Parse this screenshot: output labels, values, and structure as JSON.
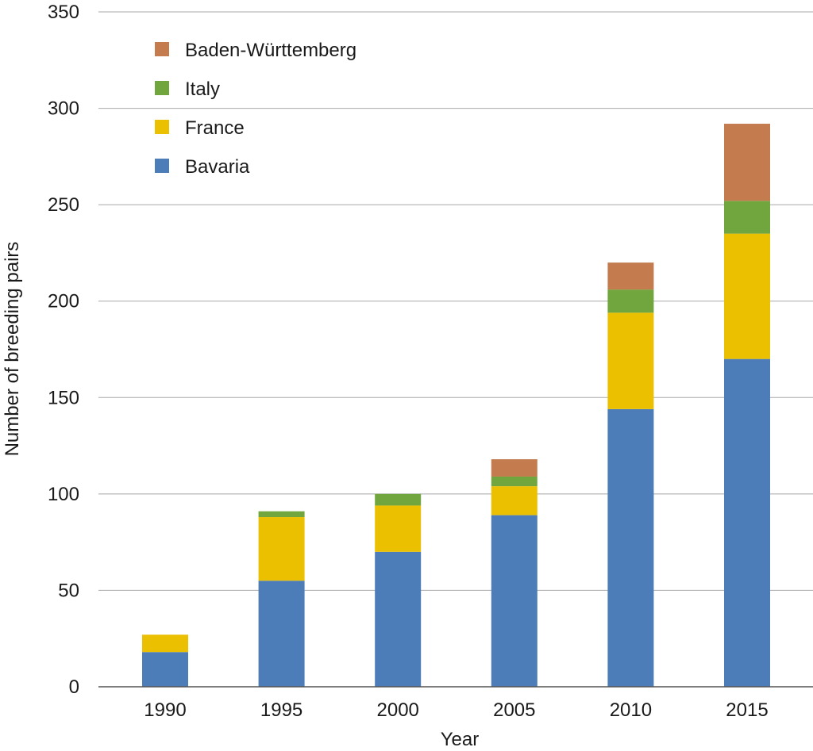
{
  "chart_data": {
    "type": "bar",
    "stacked": true,
    "xlabel": "Year",
    "ylabel": "Number of breeding pairs",
    "ylim": [
      0,
      350
    ],
    "yticks": [
      0,
      50,
      100,
      150,
      200,
      250,
      300,
      350
    ],
    "categories": [
      "1990",
      "1995",
      "2000",
      "2005",
      "2010",
      "2015"
    ],
    "grid": "horizontal",
    "legend_position": "top-left",
    "series": [
      {
        "name": "Bavaria",
        "color": "#4d7db8",
        "values": [
          18,
          55,
          70,
          89,
          144,
          170
        ]
      },
      {
        "name": "France",
        "color": "#ebc000",
        "values": [
          9,
          33,
          24,
          15,
          50,
          65
        ]
      },
      {
        "name": "Italy",
        "color": "#71a63f",
        "values": [
          0,
          3,
          6,
          5,
          12,
          17
        ]
      },
      {
        "name": "Baden-Württemberg",
        "color": "#c47c4f",
        "values": [
          0,
          0,
          0,
          9,
          14,
          40
        ]
      }
    ],
    "legend_order": [
      "Baden-Württemberg",
      "Italy",
      "France",
      "Bavaria"
    ]
  }
}
